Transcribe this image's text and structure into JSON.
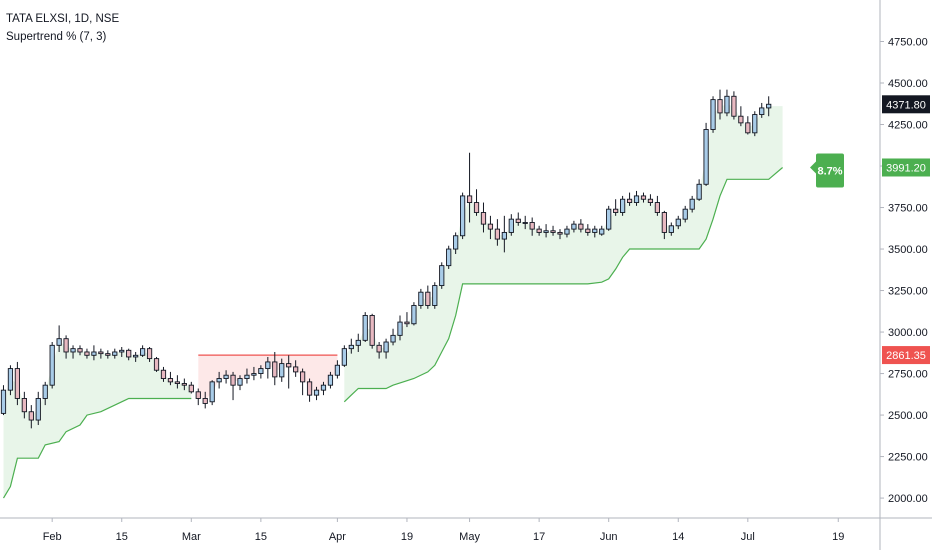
{
  "legend": {
    "symbol": "TATA ELXSI, 1D, NSE",
    "indicator": "Supertrend % (7, 3)"
  },
  "colors": {
    "up_body": "#a9cce8",
    "down_body": "#e8b9c1",
    "wick": "#131722",
    "st_up_line": "#4caf50",
    "st_up_fill": "#e8f5e9",
    "st_down_line": "#ef5350",
    "st_down_fill": "#fde8e8",
    "last_price_bg": "#131722",
    "st_badge_bg": "#4caf50",
    "red_level_bg": "#ef5350"
  },
  "badges": {
    "last_price": "4371.80",
    "supertrend": "3991.20",
    "percent": "8.7%",
    "red_level": "2861.35"
  },
  "chart_data": {
    "type": "candlestick",
    "title": "TATA ELXSI, 1D, NSE",
    "indicator": "Supertrend % (7, 3)",
    "y_ticks": [
      2000,
      2250,
      2500,
      2750,
      3000,
      3250,
      3500,
      3750,
      4000,
      4250,
      4500,
      4750
    ],
    "y_tick_labels": [
      "2000.00",
      "2250.00",
      "2500.00",
      "2750.00",
      "3000.00",
      "3250.00",
      "3500.00",
      "3750.00",
      "4000.00",
      "4250.00",
      "4500.00",
      "4750.00"
    ],
    "ylim": [
      1880,
      5000
    ],
    "x_ticks": [
      {
        "label": "Feb",
        "idx": 7
      },
      {
        "label": "15",
        "idx": 17
      },
      {
        "label": "Mar",
        "idx": 27
      },
      {
        "label": "15",
        "idx": 37
      },
      {
        "label": "Apr",
        "idx": 48
      },
      {
        "label": "19",
        "idx": 58
      },
      {
        "label": "May",
        "idx": 67
      },
      {
        "label": "17",
        "idx": 77
      },
      {
        "label": "Jun",
        "idx": 87
      },
      {
        "label": "14",
        "idx": 97
      },
      {
        "label": "Jul",
        "idx": 107
      },
      {
        "label": "19",
        "idx": 120
      }
    ],
    "x_range": [
      -0.5,
      126
    ],
    "candles": [
      [
        2510,
        2680,
        2500,
        2650
      ],
      [
        2650,
        2800,
        2620,
        2780
      ],
      [
        2780,
        2820,
        2560,
        2600
      ],
      [
        2600,
        2640,
        2480,
        2520
      ],
      [
        2520,
        2560,
        2420,
        2470
      ],
      [
        2470,
        2640,
        2440,
        2600
      ],
      [
        2600,
        2700,
        2560,
        2680
      ],
      [
        2680,
        2940,
        2660,
        2920
      ],
      [
        2920,
        3040,
        2880,
        2960
      ],
      [
        2960,
        2980,
        2840,
        2880
      ],
      [
        2880,
        2920,
        2840,
        2900
      ],
      [
        2900,
        2920,
        2860,
        2880
      ],
      [
        2880,
        2900,
        2840,
        2860
      ],
      [
        2860,
        2920,
        2830,
        2880
      ],
      [
        2880,
        2900,
        2840,
        2870
      ],
      [
        2870,
        2890,
        2840,
        2860
      ],
      [
        2860,
        2900,
        2840,
        2880
      ],
      [
        2880,
        2910,
        2850,
        2890
      ],
      [
        2890,
        2900,
        2830,
        2850
      ],
      [
        2850,
        2880,
        2820,
        2860
      ],
      [
        2860,
        2920,
        2850,
        2900
      ],
      [
        2900,
        2910,
        2820,
        2840
      ],
      [
        2840,
        2850,
        2760,
        2770
      ],
      [
        2770,
        2790,
        2700,
        2720
      ],
      [
        2720,
        2760,
        2680,
        2700
      ],
      [
        2700,
        2740,
        2660,
        2690
      ],
      [
        2690,
        2720,
        2650,
        2680
      ],
      [
        2680,
        2700,
        2630,
        2640
      ],
      [
        2640,
        2660,
        2560,
        2600
      ],
      [
        2600,
        2640,
        2540,
        2570
      ],
      [
        2580,
        2710,
        2560,
        2700
      ],
      [
        2700,
        2760,
        2660,
        2720
      ],
      [
        2720,
        2770,
        2690,
        2740
      ],
      [
        2740,
        2760,
        2590,
        2680
      ],
      [
        2680,
        2740,
        2650,
        2720
      ],
      [
        2720,
        2780,
        2690,
        2740
      ],
      [
        2740,
        2790,
        2710,
        2750
      ],
      [
        2750,
        2800,
        2720,
        2780
      ],
      [
        2780,
        2850,
        2720,
        2820
      ],
      [
        2820,
        2880,
        2680,
        2730
      ],
      [
        2730,
        2840,
        2700,
        2810
      ],
      [
        2810,
        2860,
        2660,
        2790
      ],
      [
        2790,
        2830,
        2730,
        2760
      ],
      [
        2760,
        2780,
        2620,
        2700
      ],
      [
        2700,
        2720,
        2580,
        2620
      ],
      [
        2620,
        2670,
        2590,
        2650
      ],
      [
        2650,
        2700,
        2620,
        2680
      ],
      [
        2680,
        2760,
        2660,
        2740
      ],
      [
        2740,
        2830,
        2720,
        2800
      ],
      [
        2800,
        2920,
        2790,
        2900
      ],
      [
        2900,
        2960,
        2870,
        2920
      ],
      [
        2920,
        2990,
        2880,
        2950
      ],
      [
        2950,
        3120,
        2940,
        3100
      ],
      [
        3100,
        3110,
        2900,
        2920
      ],
      [
        2920,
        2940,
        2840,
        2880
      ],
      [
        2880,
        2960,
        2840,
        2940
      ],
      [
        2940,
        3020,
        2920,
        2980
      ],
      [
        2980,
        3100,
        2950,
        3060
      ],
      [
        3060,
        3120,
        3030,
        3050
      ],
      [
        3050,
        3180,
        3040,
        3160
      ],
      [
        3160,
        3260,
        3140,
        3240
      ],
      [
        3240,
        3280,
        3140,
        3160
      ],
      [
        3160,
        3300,
        3140,
        3280
      ],
      [
        3280,
        3420,
        3260,
        3400
      ],
      [
        3400,
        3520,
        3380,
        3500
      ],
      [
        3500,
        3600,
        3470,
        3580
      ],
      [
        3580,
        3840,
        3560,
        3820
      ],
      [
        3820,
        4080,
        3660,
        3780
      ],
      [
        3780,
        3860,
        3700,
        3720
      ],
      [
        3720,
        3780,
        3600,
        3650
      ],
      [
        3650,
        3700,
        3560,
        3620
      ],
      [
        3620,
        3680,
        3520,
        3560
      ],
      [
        3560,
        3700,
        3480,
        3600
      ],
      [
        3600,
        3710,
        3580,
        3680
      ],
      [
        3680,
        3720,
        3640,
        3660
      ],
      [
        3660,
        3700,
        3620,
        3660
      ],
      [
        3660,
        3690,
        3580,
        3620
      ],
      [
        3620,
        3640,
        3580,
        3600
      ],
      [
        3600,
        3650,
        3570,
        3610
      ],
      [
        3610,
        3640,
        3580,
        3600
      ],
      [
        3600,
        3620,
        3560,
        3590
      ],
      [
        3590,
        3640,
        3570,
        3620
      ],
      [
        3620,
        3670,
        3600,
        3650
      ],
      [
        3650,
        3680,
        3600,
        3620
      ],
      [
        3620,
        3650,
        3580,
        3600
      ],
      [
        3600,
        3640,
        3570,
        3620
      ],
      [
        3590,
        3640,
        3580,
        3620
      ],
      [
        3620,
        3760,
        3610,
        3740
      ],
      [
        3740,
        3800,
        3700,
        3720
      ],
      [
        3720,
        3820,
        3700,
        3800
      ],
      [
        3800,
        3840,
        3760,
        3780
      ],
      [
        3780,
        3850,
        3760,
        3820
      ],
      [
        3820,
        3840,
        3780,
        3800
      ],
      [
        3800,
        3830,
        3760,
        3780
      ],
      [
        3780,
        3820,
        3700,
        3720
      ],
      [
        3720,
        3730,
        3560,
        3600
      ],
      [
        3600,
        3660,
        3580,
        3640
      ],
      [
        3640,
        3700,
        3620,
        3680
      ],
      [
        3680,
        3760,
        3660,
        3740
      ],
      [
        3740,
        3820,
        3720,
        3800
      ],
      [
        3800,
        3920,
        3790,
        3890
      ],
      [
        3890,
        4260,
        3880,
        4220
      ],
      [
        4220,
        4420,
        4200,
        4400
      ],
      [
        4400,
        4460,
        4280,
        4320
      ],
      [
        4320,
        4460,
        4300,
        4420
      ],
      [
        4420,
        4450,
        4280,
        4300
      ],
      [
        4300,
        4360,
        4240,
        4260
      ],
      [
        4260,
        4300,
        4190,
        4200
      ],
      [
        4200,
        4330,
        4180,
        4310
      ],
      [
        4310,
        4380,
        4290,
        4350
      ],
      [
        4350,
        4420,
        4300,
        4372
      ]
    ],
    "supertrend_segments": [
      {
        "trend": "up",
        "points": [
          [
            0,
            2000
          ],
          [
            1,
            2070
          ],
          [
            2,
            2240
          ],
          [
            5,
            2240
          ],
          [
            6,
            2320
          ],
          [
            8,
            2340
          ],
          [
            9,
            2400
          ],
          [
            11,
            2440
          ],
          [
            12,
            2500
          ],
          [
            14,
            2520
          ],
          [
            17,
            2580
          ],
          [
            18,
            2600
          ],
          [
            27,
            2600
          ]
        ]
      },
      {
        "trend": "down",
        "points": [
          [
            28,
            2861.35
          ],
          [
            48,
            2861.35
          ]
        ]
      },
      {
        "trend": "up",
        "points": [
          [
            49,
            2580
          ],
          [
            50,
            2620
          ],
          [
            51,
            2660
          ],
          [
            55,
            2660
          ],
          [
            56,
            2680
          ],
          [
            59,
            2720
          ],
          [
            61,
            2760
          ],
          [
            62,
            2800
          ],
          [
            63,
            2880
          ],
          [
            64,
            2960
          ],
          [
            65,
            3100
          ],
          [
            66,
            3290
          ],
          [
            84,
            3290
          ],
          [
            86,
            3300
          ],
          [
            87,
            3320
          ],
          [
            88,
            3380
          ],
          [
            89,
            3450
          ],
          [
            90,
            3500
          ],
          [
            100,
            3500
          ],
          [
            101,
            3560
          ],
          [
            102,
            3680
          ],
          [
            103,
            3820
          ],
          [
            104,
            3920
          ],
          [
            110,
            3920
          ],
          [
            112,
            3991.2
          ]
        ]
      }
    ]
  }
}
